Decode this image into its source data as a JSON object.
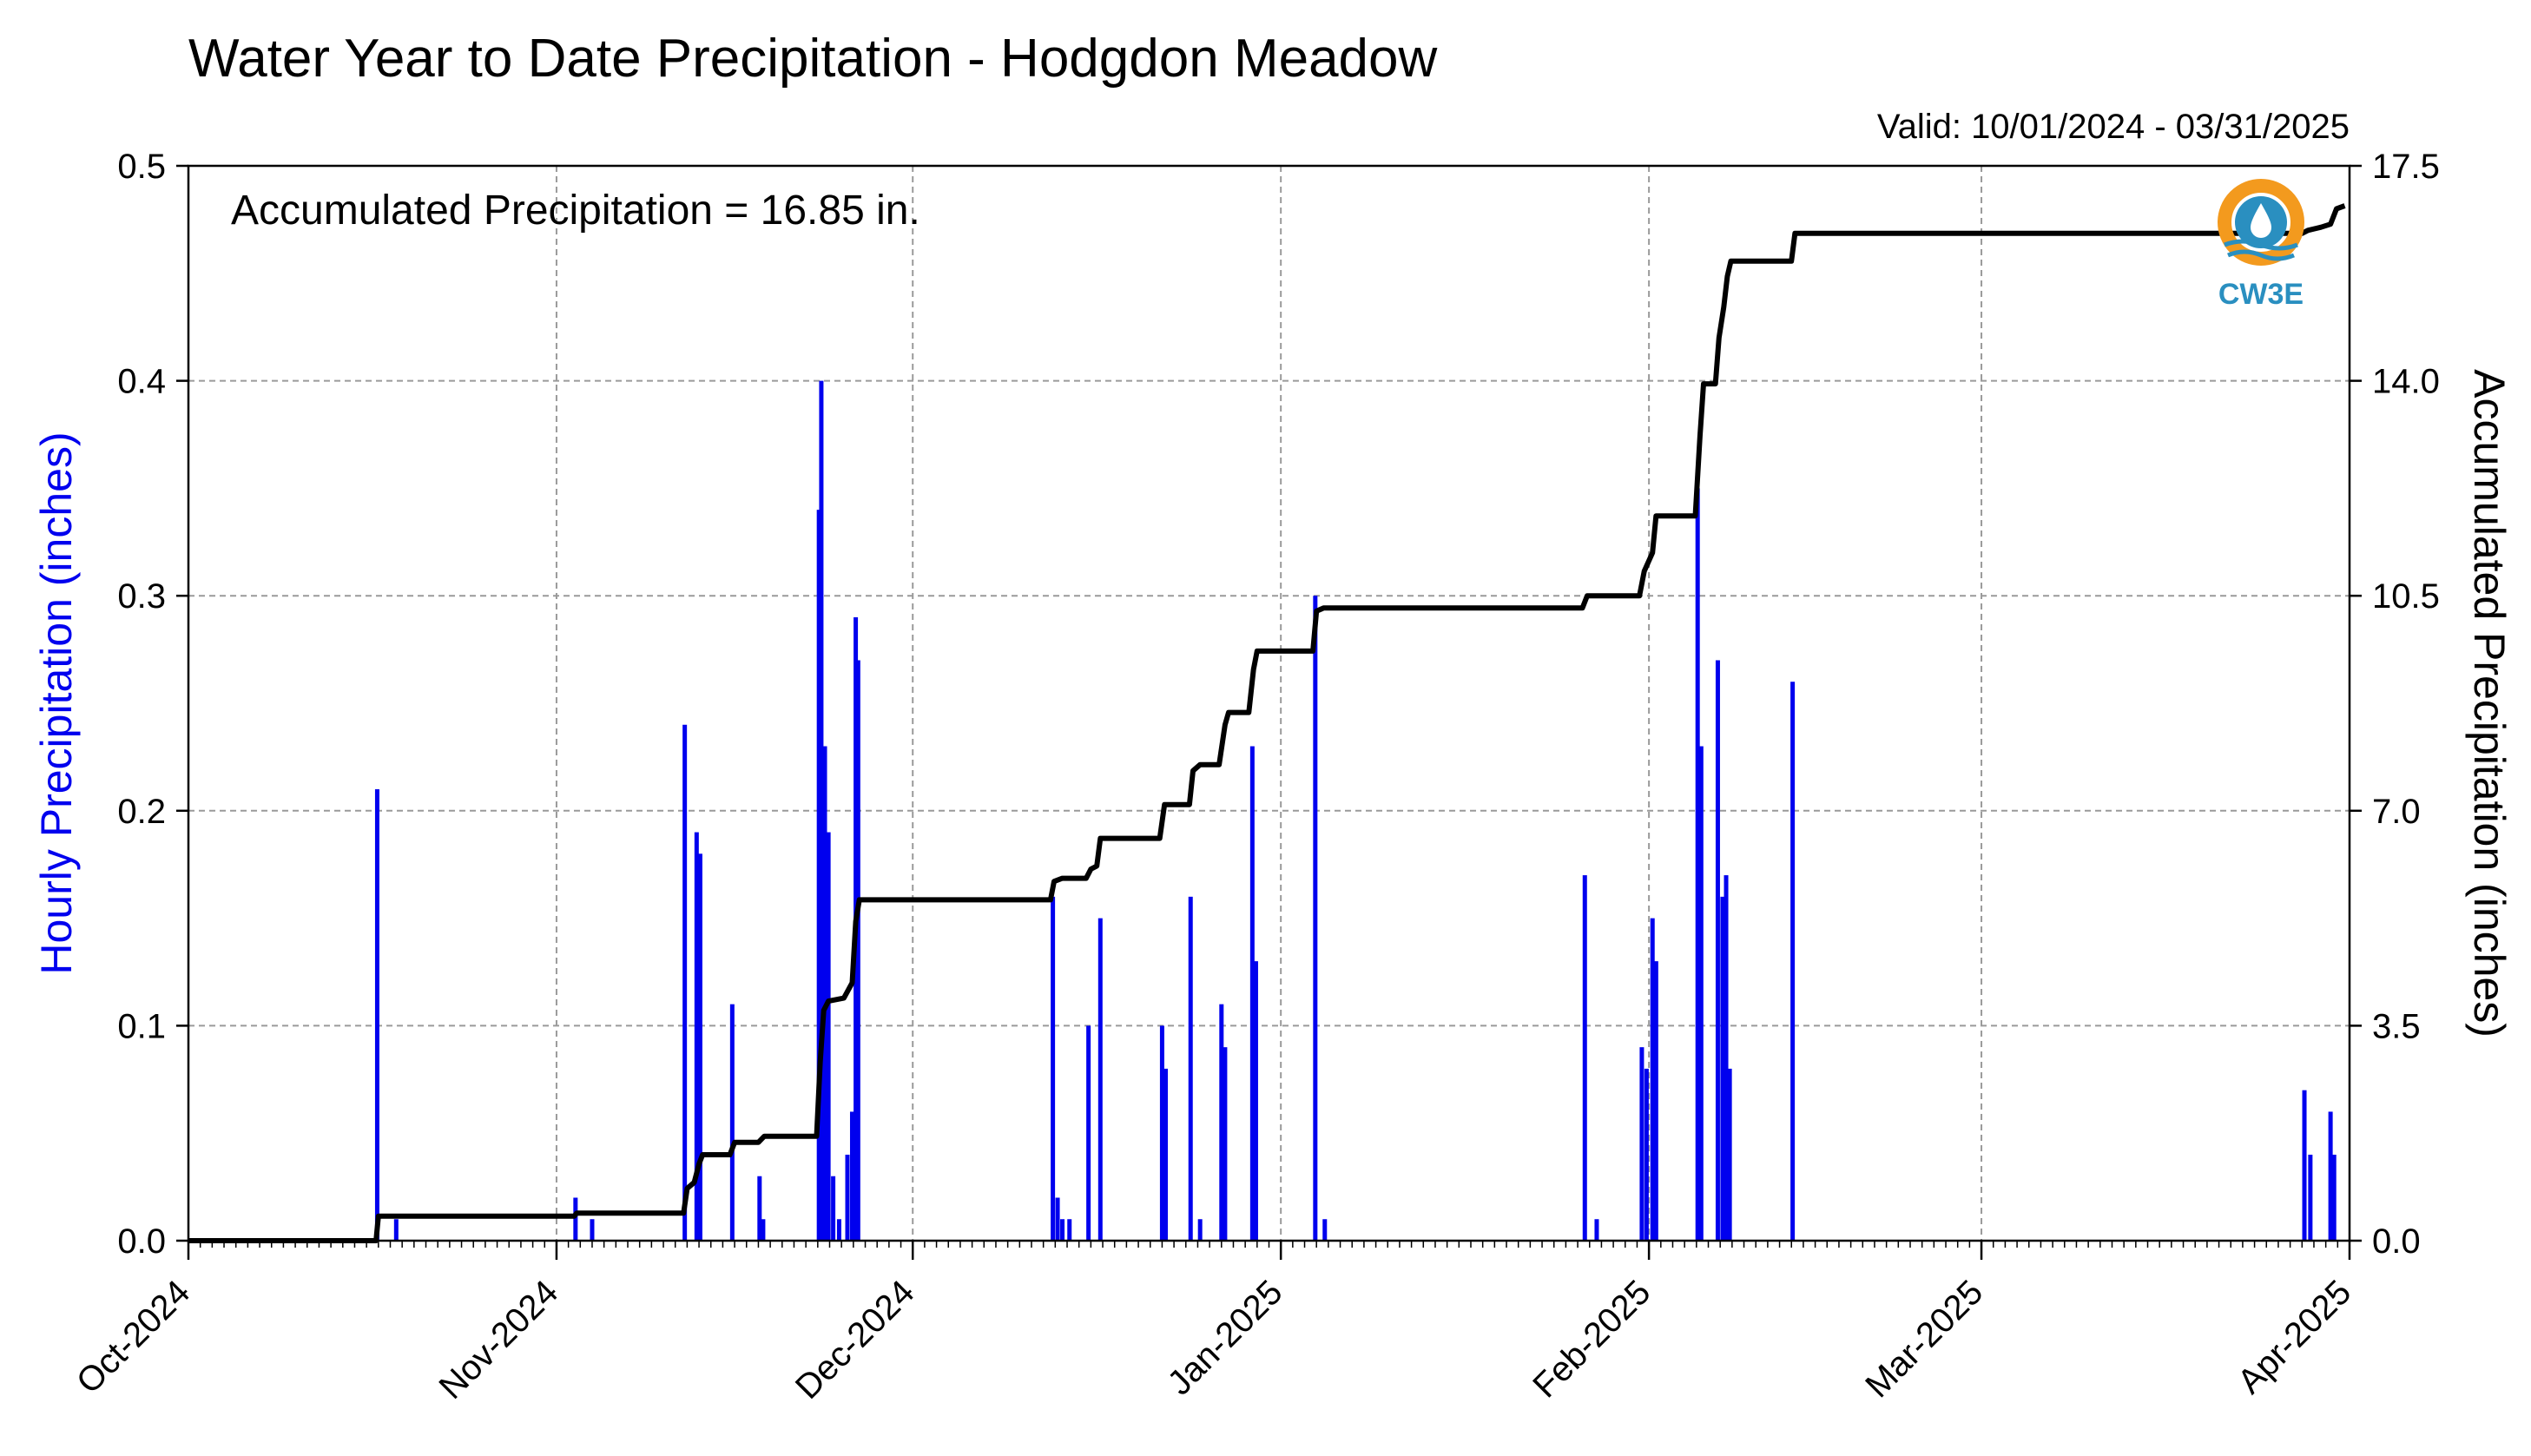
{
  "chart_data": {
    "type": "bar+line",
    "title": "Water Year to Date Precipitation - Hodgdon Meadow",
    "subtitle": "Valid: 10/01/2024 - 03/31/2025",
    "annotation": "Accumulated Precipitation = 16.85 in.",
    "ylabel_left": "Hourly Precipitation (inches)",
    "ylabel_right": "Accumulated Precipitation (inches)",
    "ylim_left": [
      0,
      0.5
    ],
    "ylim_right": [
      0,
      17.5
    ],
    "yticks_left": [
      "0.0",
      "0.1",
      "0.2",
      "0.3",
      "0.4",
      "0.5"
    ],
    "yticks_right": [
      "0.0",
      "3.5",
      "7.0",
      "10.5",
      "14.0",
      "17.5"
    ],
    "x_range_days": [
      0,
      182
    ],
    "x_ticks": [
      {
        "day": 0,
        "label": "Oct-2024"
      },
      {
        "day": 31,
        "label": "Nov-2024"
      },
      {
        "day": 61,
        "label": "Dec-2024"
      },
      {
        "day": 92,
        "label": "Jan-2025"
      },
      {
        "day": 123,
        "label": "Feb-2025"
      },
      {
        "day": 151,
        "label": "Mar-2025"
      },
      {
        "day": 182,
        "label": "Apr-2025"
      }
    ],
    "grid": true,
    "colors": {
      "hourly": "#0000ee",
      "accumulated": "#000000"
    },
    "hourly_series": {
      "name": "Hourly Precipitation",
      "points": [
        [
          15.9,
          0.21
        ],
        [
          17.5,
          0.01
        ],
        [
          32.6,
          0.02
        ],
        [
          34.0,
          0.01
        ],
        [
          41.8,
          0.24
        ],
        [
          42.8,
          0.19
        ],
        [
          43.1,
          0.18
        ],
        [
          45.8,
          0.11
        ],
        [
          48.1,
          0.03
        ],
        [
          48.4,
          0.01
        ],
        [
          53.1,
          0.34
        ],
        [
          53.3,
          0.4
        ],
        [
          53.6,
          0.23
        ],
        [
          53.9,
          0.19
        ],
        [
          54.3,
          0.03
        ],
        [
          54.8,
          0.01
        ],
        [
          55.5,
          0.04
        ],
        [
          55.9,
          0.06
        ],
        [
          56.2,
          0.29
        ],
        [
          56.4,
          0.27
        ],
        [
          72.8,
          0.16
        ],
        [
          73.2,
          0.02
        ],
        [
          73.6,
          0.01
        ],
        [
          74.2,
          0.01
        ],
        [
          75.8,
          0.1
        ],
        [
          76.8,
          0.15
        ],
        [
          82.0,
          0.1
        ],
        [
          82.3,
          0.08
        ],
        [
          84.4,
          0.16
        ],
        [
          85.2,
          0.01
        ],
        [
          87.0,
          0.11
        ],
        [
          87.3,
          0.09
        ],
        [
          89.6,
          0.23
        ],
        [
          89.9,
          0.13
        ],
        [
          94.9,
          0.3
        ],
        [
          95.7,
          0.01
        ],
        [
          117.6,
          0.17
        ],
        [
          118.6,
          0.01
        ],
        [
          122.4,
          0.09
        ],
        [
          122.8,
          0.08
        ],
        [
          123.3,
          0.15
        ],
        [
          123.6,
          0.13
        ],
        [
          127.1,
          0.35
        ],
        [
          127.4,
          0.23
        ],
        [
          128.8,
          0.27
        ],
        [
          129.2,
          0.16
        ],
        [
          129.5,
          0.17
        ],
        [
          129.8,
          0.08
        ],
        [
          135.1,
          0.26
        ],
        [
          178.2,
          0.07
        ],
        [
          178.7,
          0.04
        ],
        [
          180.4,
          0.06
        ],
        [
          180.7,
          0.04
        ]
      ]
    },
    "accumulated_series": {
      "name": "Accumulated Precipitation",
      "points": [
        [
          0,
          0.0
        ],
        [
          15.8,
          0.0
        ],
        [
          16.0,
          0.4
        ],
        [
          32.5,
          0.4
        ],
        [
          32.7,
          0.45
        ],
        [
          41.7,
          0.45
        ],
        [
          42.0,
          0.85
        ],
        [
          42.6,
          0.95
        ],
        [
          43.0,
          1.25
        ],
        [
          43.3,
          1.4
        ],
        [
          45.6,
          1.4
        ],
        [
          46.0,
          1.6
        ],
        [
          48.0,
          1.6
        ],
        [
          48.5,
          1.7
        ],
        [
          52.9,
          1.7
        ],
        [
          53.2,
          2.9
        ],
        [
          53.5,
          3.75
        ],
        [
          53.9,
          3.9
        ],
        [
          55.2,
          3.95
        ],
        [
          55.9,
          4.2
        ],
        [
          56.2,
          5.2
        ],
        [
          56.5,
          5.55
        ],
        [
          72.6,
          5.55
        ],
        [
          72.9,
          5.85
        ],
        [
          73.6,
          5.9
        ],
        [
          75.6,
          5.9
        ],
        [
          76.0,
          6.05
        ],
        [
          76.5,
          6.1
        ],
        [
          76.8,
          6.55
        ],
        [
          81.8,
          6.55
        ],
        [
          82.2,
          7.1
        ],
        [
          84.3,
          7.1
        ],
        [
          84.6,
          7.65
        ],
        [
          85.2,
          7.75
        ],
        [
          86.8,
          7.75
        ],
        [
          87.3,
          8.4
        ],
        [
          87.6,
          8.6
        ],
        [
          89.3,
          8.6
        ],
        [
          89.7,
          9.3
        ],
        [
          90.0,
          9.6
        ],
        [
          94.7,
          9.6
        ],
        [
          95.0,
          10.25
        ],
        [
          95.6,
          10.3
        ],
        [
          117.4,
          10.3
        ],
        [
          117.8,
          10.5
        ],
        [
          122.2,
          10.5
        ],
        [
          122.6,
          10.9
        ],
        [
          123.3,
          11.2
        ],
        [
          123.6,
          11.8
        ],
        [
          126.9,
          11.8
        ],
        [
          127.3,
          13.1
        ],
        [
          127.6,
          13.95
        ],
        [
          128.6,
          13.95
        ],
        [
          128.9,
          14.7
        ],
        [
          129.3,
          15.2
        ],
        [
          129.6,
          15.7
        ],
        [
          129.9,
          15.95
        ],
        [
          135.0,
          15.95
        ],
        [
          135.3,
          16.4
        ],
        [
          178.0,
          16.4
        ],
        [
          178.5,
          16.45
        ],
        [
          179.6,
          16.5
        ],
        [
          180.4,
          16.55
        ],
        [
          180.9,
          16.8
        ],
        [
          181.6,
          16.85
        ]
      ]
    }
  },
  "logo": {
    "text": "CW3E"
  }
}
